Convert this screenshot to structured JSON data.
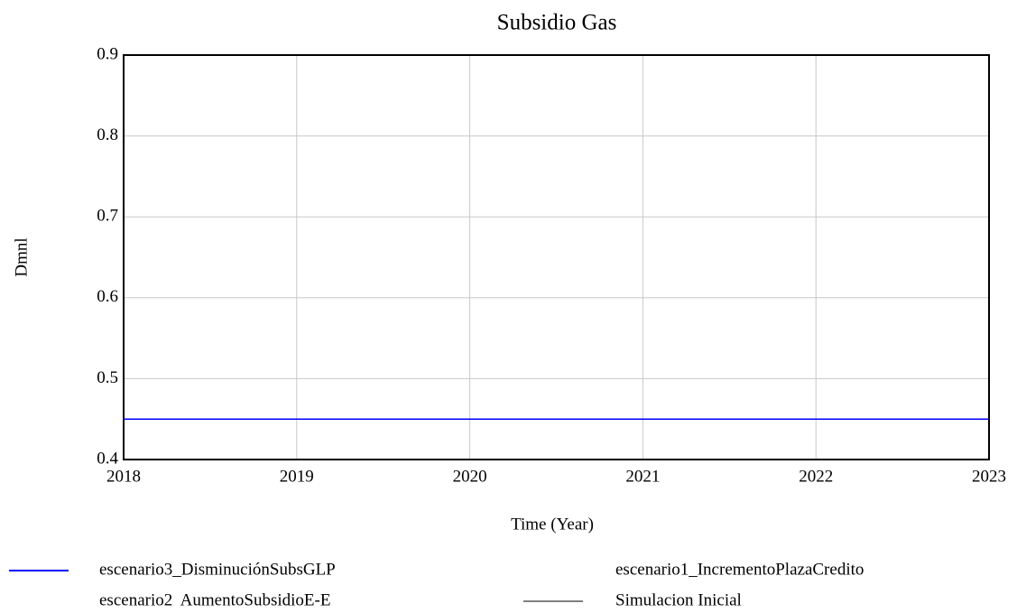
{
  "chart_data": {
    "type": "line",
    "title": "Subsidio Gas",
    "x_label": "Time (Year)",
    "y_label": "Dmnl",
    "x": [
      2018,
      2023
    ],
    "xlim": [
      2018,
      2023
    ],
    "xticks": [
      2018,
      2019,
      2020,
      2021,
      2022,
      2023
    ],
    "ylim": [
      0.4,
      0.9
    ],
    "yticks": [
      0.4,
      0.5,
      0.6,
      0.7,
      0.8,
      0.9
    ],
    "grid": true,
    "series": [
      {
        "name": "escenario3_DisminuciónSubsGLP",
        "color": "#0000ff",
        "values": [
          0.45,
          0.45
        ]
      },
      {
        "name": "escenario1_IncrementoPlazaCredito",
        "color": "#ffffff",
        "values": [
          0.45,
          0.45
        ]
      },
      {
        "name": "escenario2  AumentoSubsidioE-E",
        "color": "#ffffff",
        "values": [
          0.45,
          0.45
        ]
      },
      {
        "name": "Simulacion Inicial",
        "color": "#808080",
        "values": [
          0.45,
          0.45
        ]
      }
    ]
  }
}
